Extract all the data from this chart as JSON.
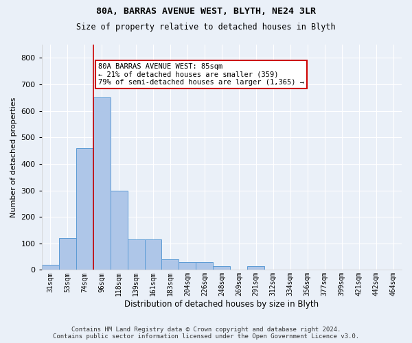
{
  "title1": "80A, BARRAS AVENUE WEST, BLYTH, NE24 3LR",
  "title2": "Size of property relative to detached houses in Blyth",
  "xlabel": "Distribution of detached houses by size in Blyth",
  "ylabel": "Number of detached properties",
  "footer": "Contains HM Land Registry data © Crown copyright and database right 2024.\nContains public sector information licensed under the Open Government Licence v3.0.",
  "bin_labels": [
    "31sqm",
    "53sqm",
    "74sqm",
    "96sqm",
    "118sqm",
    "139sqm",
    "161sqm",
    "183sqm",
    "204sqm",
    "226sqm",
    "248sqm",
    "269sqm",
    "291sqm",
    "312sqm",
    "334sqm",
    "356sqm",
    "377sqm",
    "399sqm",
    "421sqm",
    "442sqm",
    "464sqm"
  ],
  "counts": [
    20,
    120,
    460,
    650,
    300,
    115,
    115,
    40,
    30,
    30,
    15,
    0,
    15,
    0,
    0,
    0,
    0,
    0,
    0,
    0,
    0
  ],
  "bar_color": "#aec6e8",
  "bar_edge_color": "#5b9bd5",
  "bg_color": "#eaf0f8",
  "grid_color": "#ffffff",
  "property_line_index": 2.5,
  "annotation_text": "80A BARRAS AVENUE WEST: 85sqm\n← 21% of detached houses are smaller (359)\n79% of semi-detached houses are larger (1,365) →",
  "annotation_box_color": "#ffffff",
  "annotation_box_edge": "#cc0000",
  "ylim": [
    0,
    850
  ],
  "yticks": [
    0,
    100,
    200,
    300,
    400,
    500,
    600,
    700,
    800
  ],
  "n_bars": 21
}
